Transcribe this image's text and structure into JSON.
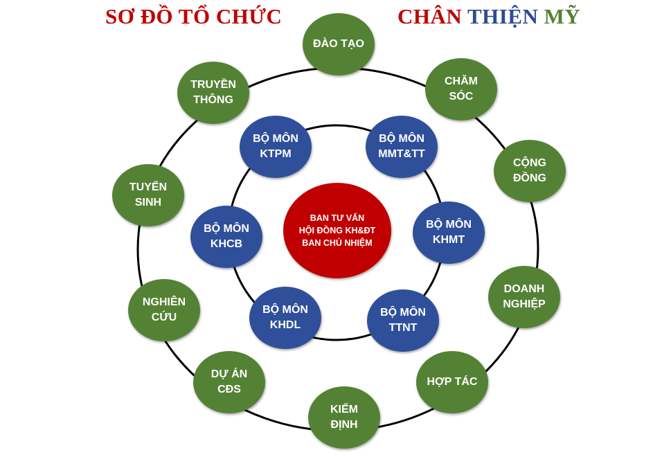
{
  "title": {
    "left": {
      "text": "SƠ ĐỒ TỔ CHỨC",
      "color": "#c00000"
    },
    "right": [
      {
        "text": "CHÂN ",
        "color": "#c00000"
      },
      {
        "text": "THIỆN ",
        "color": "#2e4b8f"
      },
      {
        "text": "MỸ",
        "color": "#548235"
      }
    ]
  },
  "colors": {
    "outer_node": "#548235",
    "inner_node": "#2f4f9a",
    "center_node": "#c00000",
    "ring_stroke": "#000000"
  },
  "center": {
    "lines": [
      "BAN TƯ VẤN",
      "HỘI ĐỒNG KH&ĐT",
      "BAN CHỦ NHIỆM"
    ]
  },
  "inner_nodes": [
    {
      "id": "ktpm",
      "lines": [
        "BỘ MÔN",
        "KTPM"
      ]
    },
    {
      "id": "mmtt",
      "lines": [
        "BỘ MÔN",
        "MMT&TT"
      ]
    },
    {
      "id": "khmt",
      "lines": [
        "BỘ MÔN",
        "KHMT"
      ]
    },
    {
      "id": "ttnt",
      "lines": [
        "BỘ MÔN",
        "TTNT"
      ]
    },
    {
      "id": "khdl",
      "lines": [
        "BỘ MÔN",
        "KHDL"
      ]
    },
    {
      "id": "khcb",
      "lines": [
        "BỘ MÔN",
        "KHCB"
      ]
    }
  ],
  "outer_nodes": [
    {
      "id": "dao-tao",
      "lines": [
        "ĐÀO TẠO"
      ]
    },
    {
      "id": "cham-soc",
      "lines": [
        "CHĂM",
        "SÓC"
      ]
    },
    {
      "id": "cong-dong",
      "lines": [
        "CỘNG",
        "ĐỒNG"
      ]
    },
    {
      "id": "doanh-nghiep",
      "lines": [
        "DOANH",
        "NGHIỆP"
      ]
    },
    {
      "id": "hop-tac",
      "lines": [
        "HỢP TÁC"
      ]
    },
    {
      "id": "kiem-dinh",
      "lines": [
        "KIỂM",
        "ĐỊNH"
      ]
    },
    {
      "id": "du-an-cds",
      "lines": [
        "DỰ ÁN",
        "CĐS"
      ]
    },
    {
      "id": "nghien-cuu",
      "lines": [
        "NGHIÊN",
        "CỨU"
      ]
    },
    {
      "id": "tuyen-sinh",
      "lines": [
        "TUYỂN",
        "SINH"
      ]
    },
    {
      "id": "truyen-thong",
      "lines": [
        "TRUYỀN",
        "THÔNG"
      ]
    }
  ]
}
